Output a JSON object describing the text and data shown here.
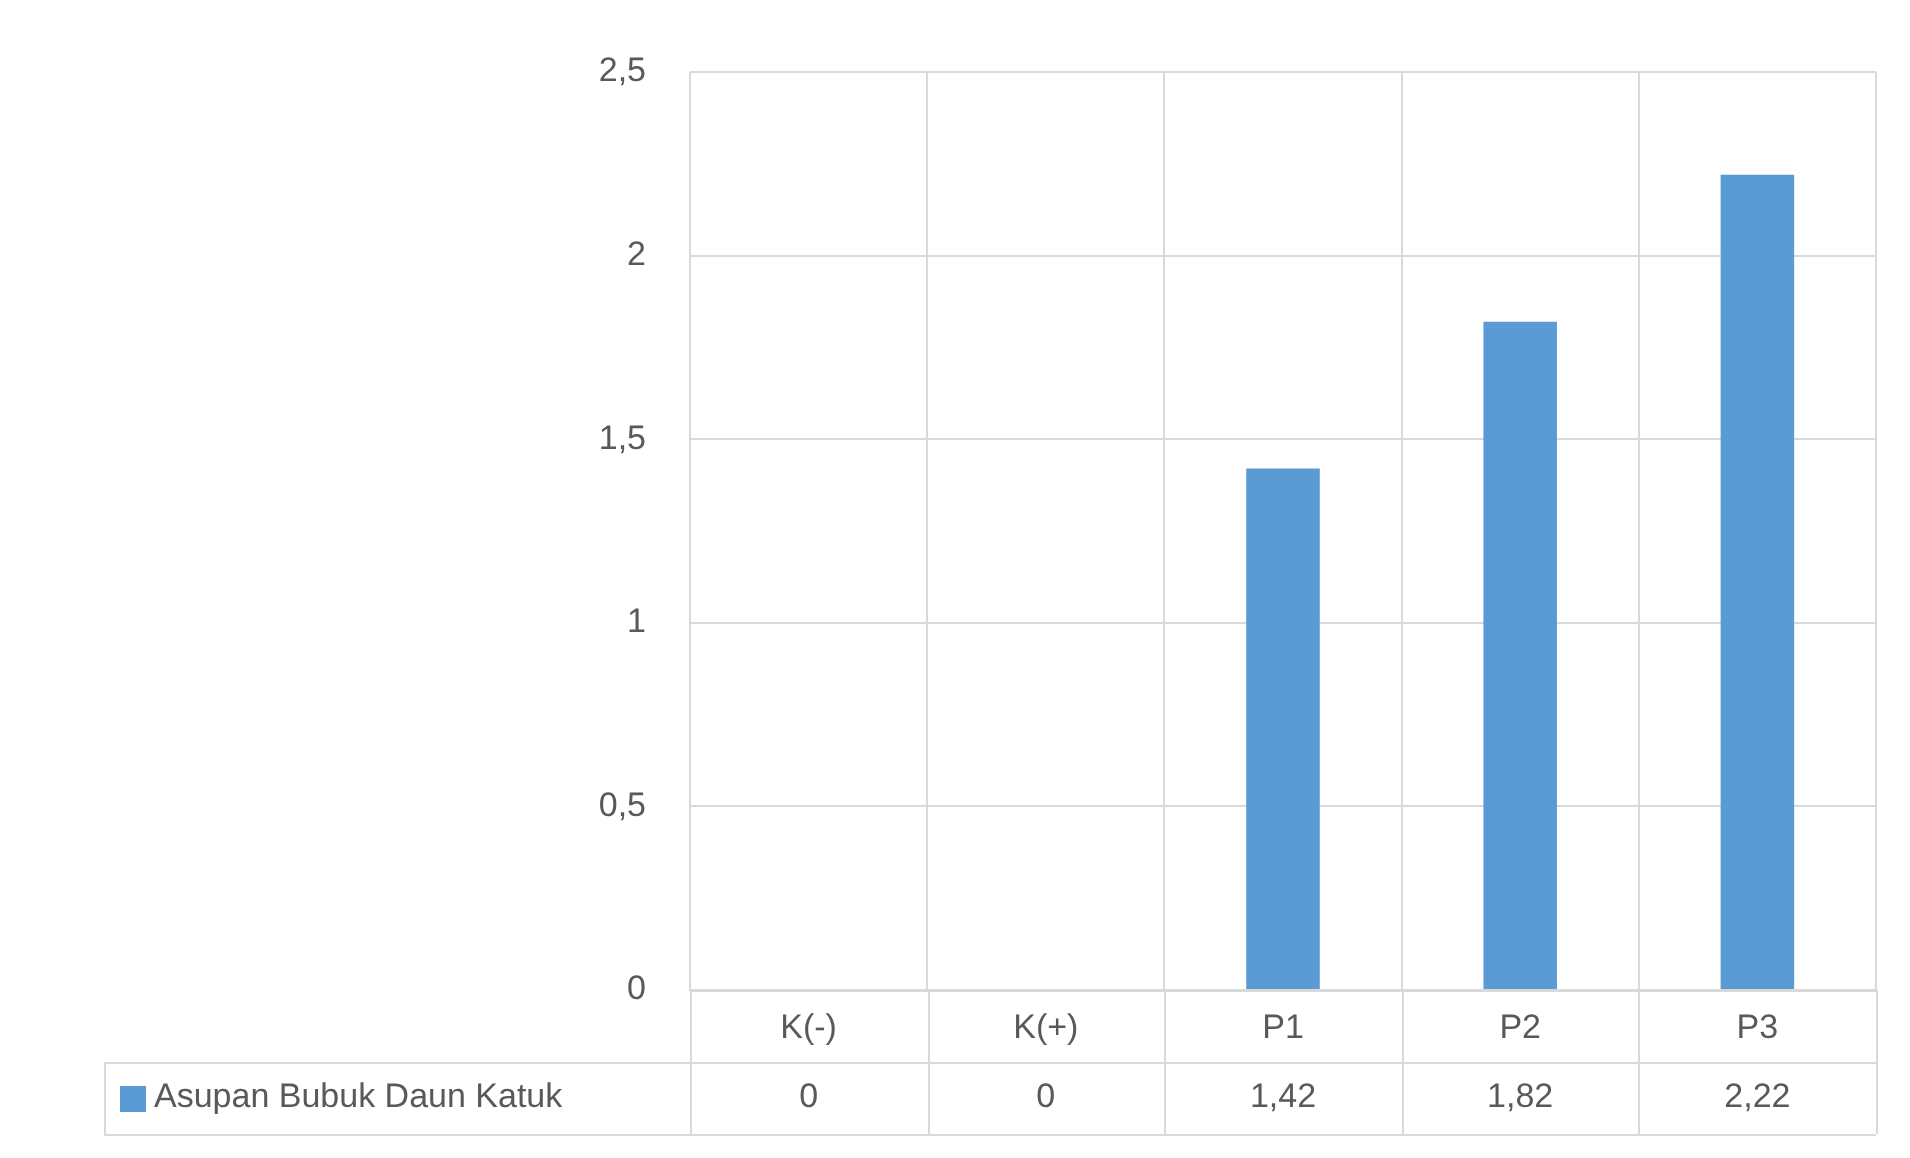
{
  "chart_data": {
    "type": "bar",
    "categories": [
      "K(-)",
      "K(+)",
      "P1",
      "P2",
      "P3"
    ],
    "series": [
      {
        "name": "Asupan Bubuk Daun Katuk",
        "color": "#5b9bd5",
        "values": [
          0,
          0,
          1.42,
          1.82,
          2.22
        ],
        "value_labels": [
          "0",
          "0",
          "1,42",
          "1,82",
          "2,22"
        ]
      }
    ],
    "ylim": [
      0,
      2.5
    ],
    "yticks": [
      {
        "value": 0,
        "label": "0"
      },
      {
        "value": 0.5,
        "label": "0,5"
      },
      {
        "value": 1,
        "label": "1"
      },
      {
        "value": 1.5,
        "label": "1,5"
      },
      {
        "value": 2,
        "label": "2"
      },
      {
        "value": 2.5,
        "label": "2,5"
      }
    ],
    "grid": true,
    "legend": "bottom"
  }
}
